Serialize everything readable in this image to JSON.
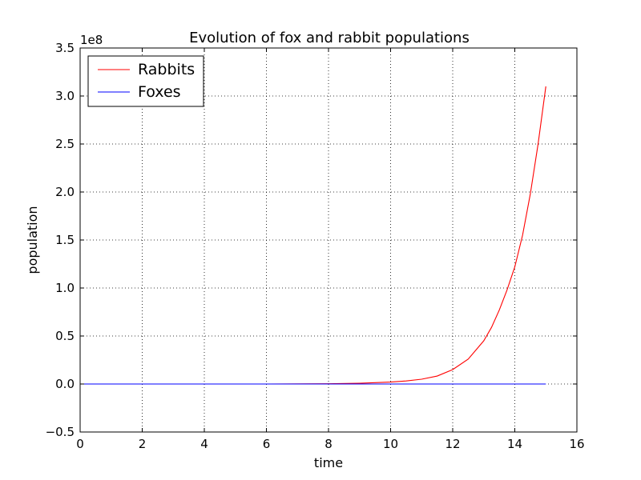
{
  "chart_data": {
    "type": "line",
    "title": "Evolution of fox and rabbit populations",
    "xlabel": "time",
    "ylabel": "population",
    "y_offset_label": "1e8",
    "xlim": [
      0,
      16
    ],
    "ylim": [
      -0.5,
      3.5
    ],
    "y_scale": 100000000,
    "x_ticks": [
      "0",
      "2",
      "4",
      "6",
      "8",
      "10",
      "12",
      "14",
      "16"
    ],
    "y_ticks": [
      "−0.5",
      "0.0",
      "0.5",
      "1.0",
      "1.5",
      "2.0",
      "2.5",
      "3.0",
      "3.5"
    ],
    "x_tick_values": [
      0,
      2,
      4,
      6,
      8,
      10,
      12,
      14,
      16
    ],
    "y_tick_values": [
      -0.5,
      0,
      0.5,
      1.0,
      1.5,
      2.0,
      2.5,
      3.0,
      3.5
    ],
    "grid": true,
    "legend_position": "top-left",
    "series": [
      {
        "name": "Rabbits",
        "color": "#ff0000",
        "x": [
          0,
          2,
          4,
          6,
          8,
          9,
          10,
          10.5,
          11,
          11.5,
          12,
          12.5,
          13,
          13.25,
          13.5,
          13.75,
          14,
          14.25,
          14.5,
          14.75,
          15
        ],
        "y": [
          0,
          0,
          0,
          0,
          0.003,
          0.008,
          0.02,
          0.032,
          0.05,
          0.083,
          0.15,
          0.26,
          0.45,
          0.59,
          0.77,
          0.98,
          1.22,
          1.55,
          1.98,
          2.5,
          3.1
        ]
      },
      {
        "name": "Foxes",
        "color": "#0000ff",
        "x": [
          0,
          15
        ],
        "y": [
          0,
          0
        ]
      }
    ]
  }
}
